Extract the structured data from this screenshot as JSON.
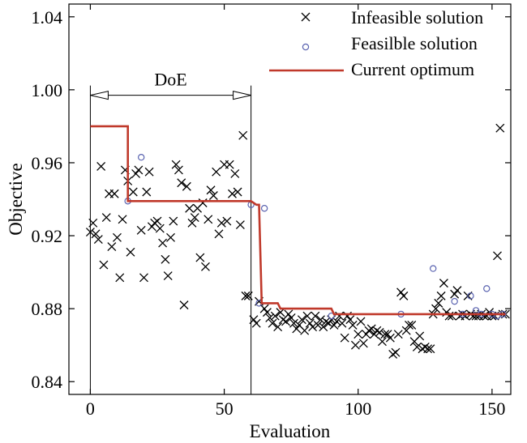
{
  "chart_data": {
    "type": "scatter",
    "xlabel": "Evaluation",
    "ylabel": "Objective",
    "xlim": [
      -8,
      157
    ],
    "ylim": [
      0.833,
      1.047
    ],
    "xticks": [
      0,
      50,
      100,
      150
    ],
    "xtick_labels": [
      "0",
      "50",
      "100",
      "150"
    ],
    "yticks": [
      0.84,
      0.88,
      0.92,
      0.96,
      1.0,
      1.04
    ],
    "ytick_labels": [
      "0.84",
      "0.88",
      "0.92",
      "0.96",
      "1.00",
      "1.04"
    ],
    "grid": false,
    "legend_position": "top-right",
    "annotation": {
      "text": "DoE",
      "x_start": 0,
      "x_end": 60,
      "y": 0.997
    },
    "series": [
      {
        "name": "Infeasible solution",
        "marker": "x",
        "color": "#000000",
        "points": [
          [
            0,
            0.922
          ],
          [
            1,
            0.927
          ],
          [
            2,
            0.921
          ],
          [
            3,
            0.918
          ],
          [
            4,
            0.958
          ],
          [
            5,
            0.904
          ],
          [
            6,
            0.93
          ],
          [
            7,
            0.943
          ],
          [
            8,
            0.914
          ],
          [
            9,
            0.943
          ],
          [
            10,
            0.919
          ],
          [
            11,
            0.897
          ],
          [
            12,
            0.929
          ],
          [
            13,
            0.956
          ],
          [
            14,
            0.95
          ],
          [
            15,
            0.911
          ],
          [
            16,
            0.944
          ],
          [
            17,
            0.954
          ],
          [
            18,
            0.956
          ],
          [
            19,
            0.923
          ],
          [
            20,
            0.897
          ],
          [
            21,
            0.944
          ],
          [
            22,
            0.955
          ],
          [
            23,
            0.925
          ],
          [
            24,
            0.927
          ],
          [
            25,
            0.928
          ],
          [
            26,
            0.924
          ],
          [
            27,
            0.916
          ],
          [
            28,
            0.907
          ],
          [
            29,
            0.898
          ],
          [
            30,
            0.919
          ],
          [
            31,
            0.928
          ],
          [
            32,
            0.959
          ],
          [
            33,
            0.956
          ],
          [
            34,
            0.949
          ],
          [
            35,
            0.882
          ],
          [
            36,
            0.947
          ],
          [
            37,
            0.935
          ],
          [
            38,
            0.927
          ],
          [
            39,
            0.93
          ],
          [
            40,
            0.935
          ],
          [
            41,
            0.908
          ],
          [
            42,
            0.938
          ],
          [
            43,
            0.903
          ],
          [
            44,
            0.929
          ],
          [
            45,
            0.945
          ],
          [
            46,
            0.942
          ],
          [
            47,
            0.955
          ],
          [
            48,
            0.921
          ],
          [
            49,
            0.927
          ],
          [
            50,
            0.959
          ],
          [
            51,
            0.928
          ],
          [
            52,
            0.959
          ],
          [
            53,
            0.943
          ],
          [
            54,
            0.954
          ],
          [
            55,
            0.944
          ],
          [
            56,
            0.926
          ],
          [
            57,
            0.975
          ],
          [
            58,
            0.887
          ],
          [
            59,
            0.887
          ],
          [
            61,
            0.874
          ],
          [
            62,
            0.872
          ],
          [
            63,
            0.884
          ],
          [
            65,
            0.88
          ],
          [
            66,
            0.878
          ],
          [
            67,
            0.875
          ],
          [
            68,
            0.872
          ],
          [
            69,
            0.876
          ],
          [
            70,
            0.87
          ],
          [
            71,
            0.878
          ],
          [
            72,
            0.874
          ],
          [
            73,
            0.873
          ],
          [
            74,
            0.877
          ],
          [
            75,
            0.875
          ],
          [
            76,
            0.872
          ],
          [
            77,
            0.869
          ],
          [
            78,
            0.871
          ],
          [
            79,
            0.874
          ],
          [
            80,
            0.868
          ],
          [
            81,
            0.876
          ],
          [
            82,
            0.872
          ],
          [
            83,
            0.87
          ],
          [
            84,
            0.876
          ],
          [
            85,
            0.871
          ],
          [
            86,
            0.874
          ],
          [
            87,
            0.87
          ],
          [
            88,
            0.873
          ],
          [
            89,
            0.872
          ],
          [
            90,
            0.874
          ],
          [
            91,
            0.871
          ],
          [
            92,
            0.873
          ],
          [
            93,
            0.876
          ],
          [
            94,
            0.872
          ],
          [
            95,
            0.864
          ],
          [
            96,
            0.876
          ],
          [
            97,
            0.874
          ],
          [
            98,
            0.871
          ],
          [
            99,
            0.86
          ],
          [
            100,
            0.866
          ],
          [
            101,
            0.873
          ],
          [
            102,
            0.861
          ],
          [
            103,
            0.866
          ],
          [
            104,
            0.868
          ],
          [
            105,
            0.869
          ],
          [
            106,
            0.866
          ],
          [
            107,
            0.868
          ],
          [
            108,
            0.867
          ],
          [
            109,
            0.862
          ],
          [
            110,
            0.866
          ],
          [
            111,
            0.866
          ],
          [
            112,
            0.864
          ],
          [
            113,
            0.855
          ],
          [
            114,
            0.856
          ],
          [
            115,
            0.866
          ],
          [
            116,
            0.889
          ],
          [
            117,
            0.887
          ],
          [
            118,
            0.868
          ],
          [
            119,
            0.871
          ],
          [
            120,
            0.871
          ],
          [
            121,
            0.862
          ],
          [
            122,
            0.859
          ],
          [
            123,
            0.865
          ],
          [
            124,
            0.858
          ],
          [
            125,
            0.859
          ],
          [
            126,
            0.858
          ],
          [
            127,
            0.858
          ],
          [
            128,
            0.877
          ],
          [
            129,
            0.88
          ],
          [
            130,
            0.883
          ],
          [
            131,
            0.887
          ],
          [
            132,
            0.894
          ],
          [
            133,
            0.878
          ],
          [
            134,
            0.876
          ],
          [
            135,
            0.876
          ],
          [
            136,
            0.888
          ],
          [
            137,
            0.89
          ],
          [
            138,
            0.876
          ],
          [
            139,
            0.877
          ],
          [
            140,
            0.876
          ],
          [
            141,
            0.887
          ],
          [
            142,
            0.877
          ],
          [
            143,
            0.876
          ],
          [
            144,
            0.876
          ],
          [
            145,
            0.876
          ],
          [
            146,
            0.877
          ],
          [
            147,
            0.876
          ],
          [
            148,
            0.876
          ],
          [
            149,
            0.878
          ],
          [
            150,
            0.876
          ],
          [
            151,
            0.876
          ],
          [
            152,
            0.909
          ],
          [
            153,
            0.979
          ],
          [
            154,
            0.877
          ],
          [
            155,
            0.877
          ]
        ]
      },
      {
        "name": "Feasilble solution",
        "marker": "o",
        "color": "#5a63b0",
        "points": [
          [
            14,
            0.939
          ],
          [
            19,
            0.963
          ],
          [
            60,
            0.937
          ],
          [
            63,
            0.883
          ],
          [
            65,
            0.935
          ],
          [
            90,
            0.876
          ],
          [
            116,
            0.877
          ],
          [
            128,
            0.902
          ],
          [
            136,
            0.884
          ],
          [
            139,
            0.877
          ],
          [
            142,
            0.887
          ],
          [
            144,
            0.879
          ],
          [
            146,
            0.877
          ],
          [
            148,
            0.891
          ],
          [
            150,
            0.877
          ],
          [
            152,
            0.876
          ],
          [
            154,
            0.877
          ]
        ]
      },
      {
        "name": "Current optimum",
        "type": "step",
        "color": "#c0392b",
        "points": [
          [
            0,
            0.98
          ],
          [
            14,
            0.98
          ],
          [
            14,
            0.939
          ],
          [
            60,
            0.939
          ],
          [
            62,
            0.937
          ],
          [
            63,
            0.937
          ],
          [
            64,
            0.883
          ],
          [
            70,
            0.883
          ],
          [
            71,
            0.88
          ],
          [
            90,
            0.88
          ],
          [
            91,
            0.877
          ],
          [
            155,
            0.877
          ]
        ]
      }
    ]
  }
}
